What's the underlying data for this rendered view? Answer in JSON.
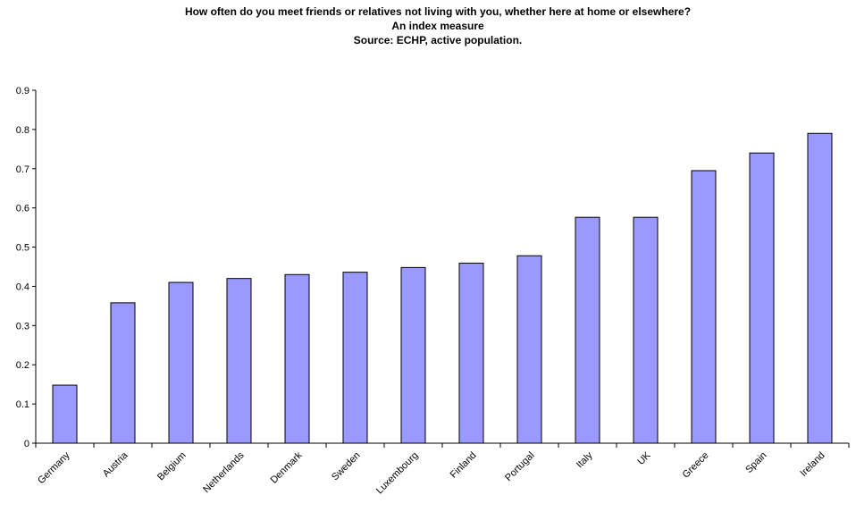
{
  "chart_data": {
    "type": "bar",
    "title_lines": [
      "How often do you meet friends or relatives not living with you, whether here at home or elsewhere?",
      "An index measure",
      "Source: ECHP, active population."
    ],
    "categories": [
      "Germany",
      "Austria",
      "Belgium",
      "Netherlands",
      "Denmark",
      "Sweden",
      "Luxembourg",
      "Finland",
      "Portugal",
      "Italy",
      "UK",
      "Greece",
      "Spain",
      "Ireland"
    ],
    "values": [
      0.148,
      0.358,
      0.41,
      0.42,
      0.43,
      0.436,
      0.448,
      0.459,
      0.478,
      0.576,
      0.576,
      0.695,
      0.74,
      0.79
    ],
    "ylim": [
      0,
      0.9
    ],
    "yticks": [
      "0",
      "0.1",
      "0.2",
      "0.3",
      "0.4",
      "0.5",
      "0.6",
      "0.7",
      "0.8",
      "0.9"
    ],
    "grid": false,
    "legend": "none",
    "bar_color": "#9999ff",
    "bar_edge_color": "#000000"
  }
}
